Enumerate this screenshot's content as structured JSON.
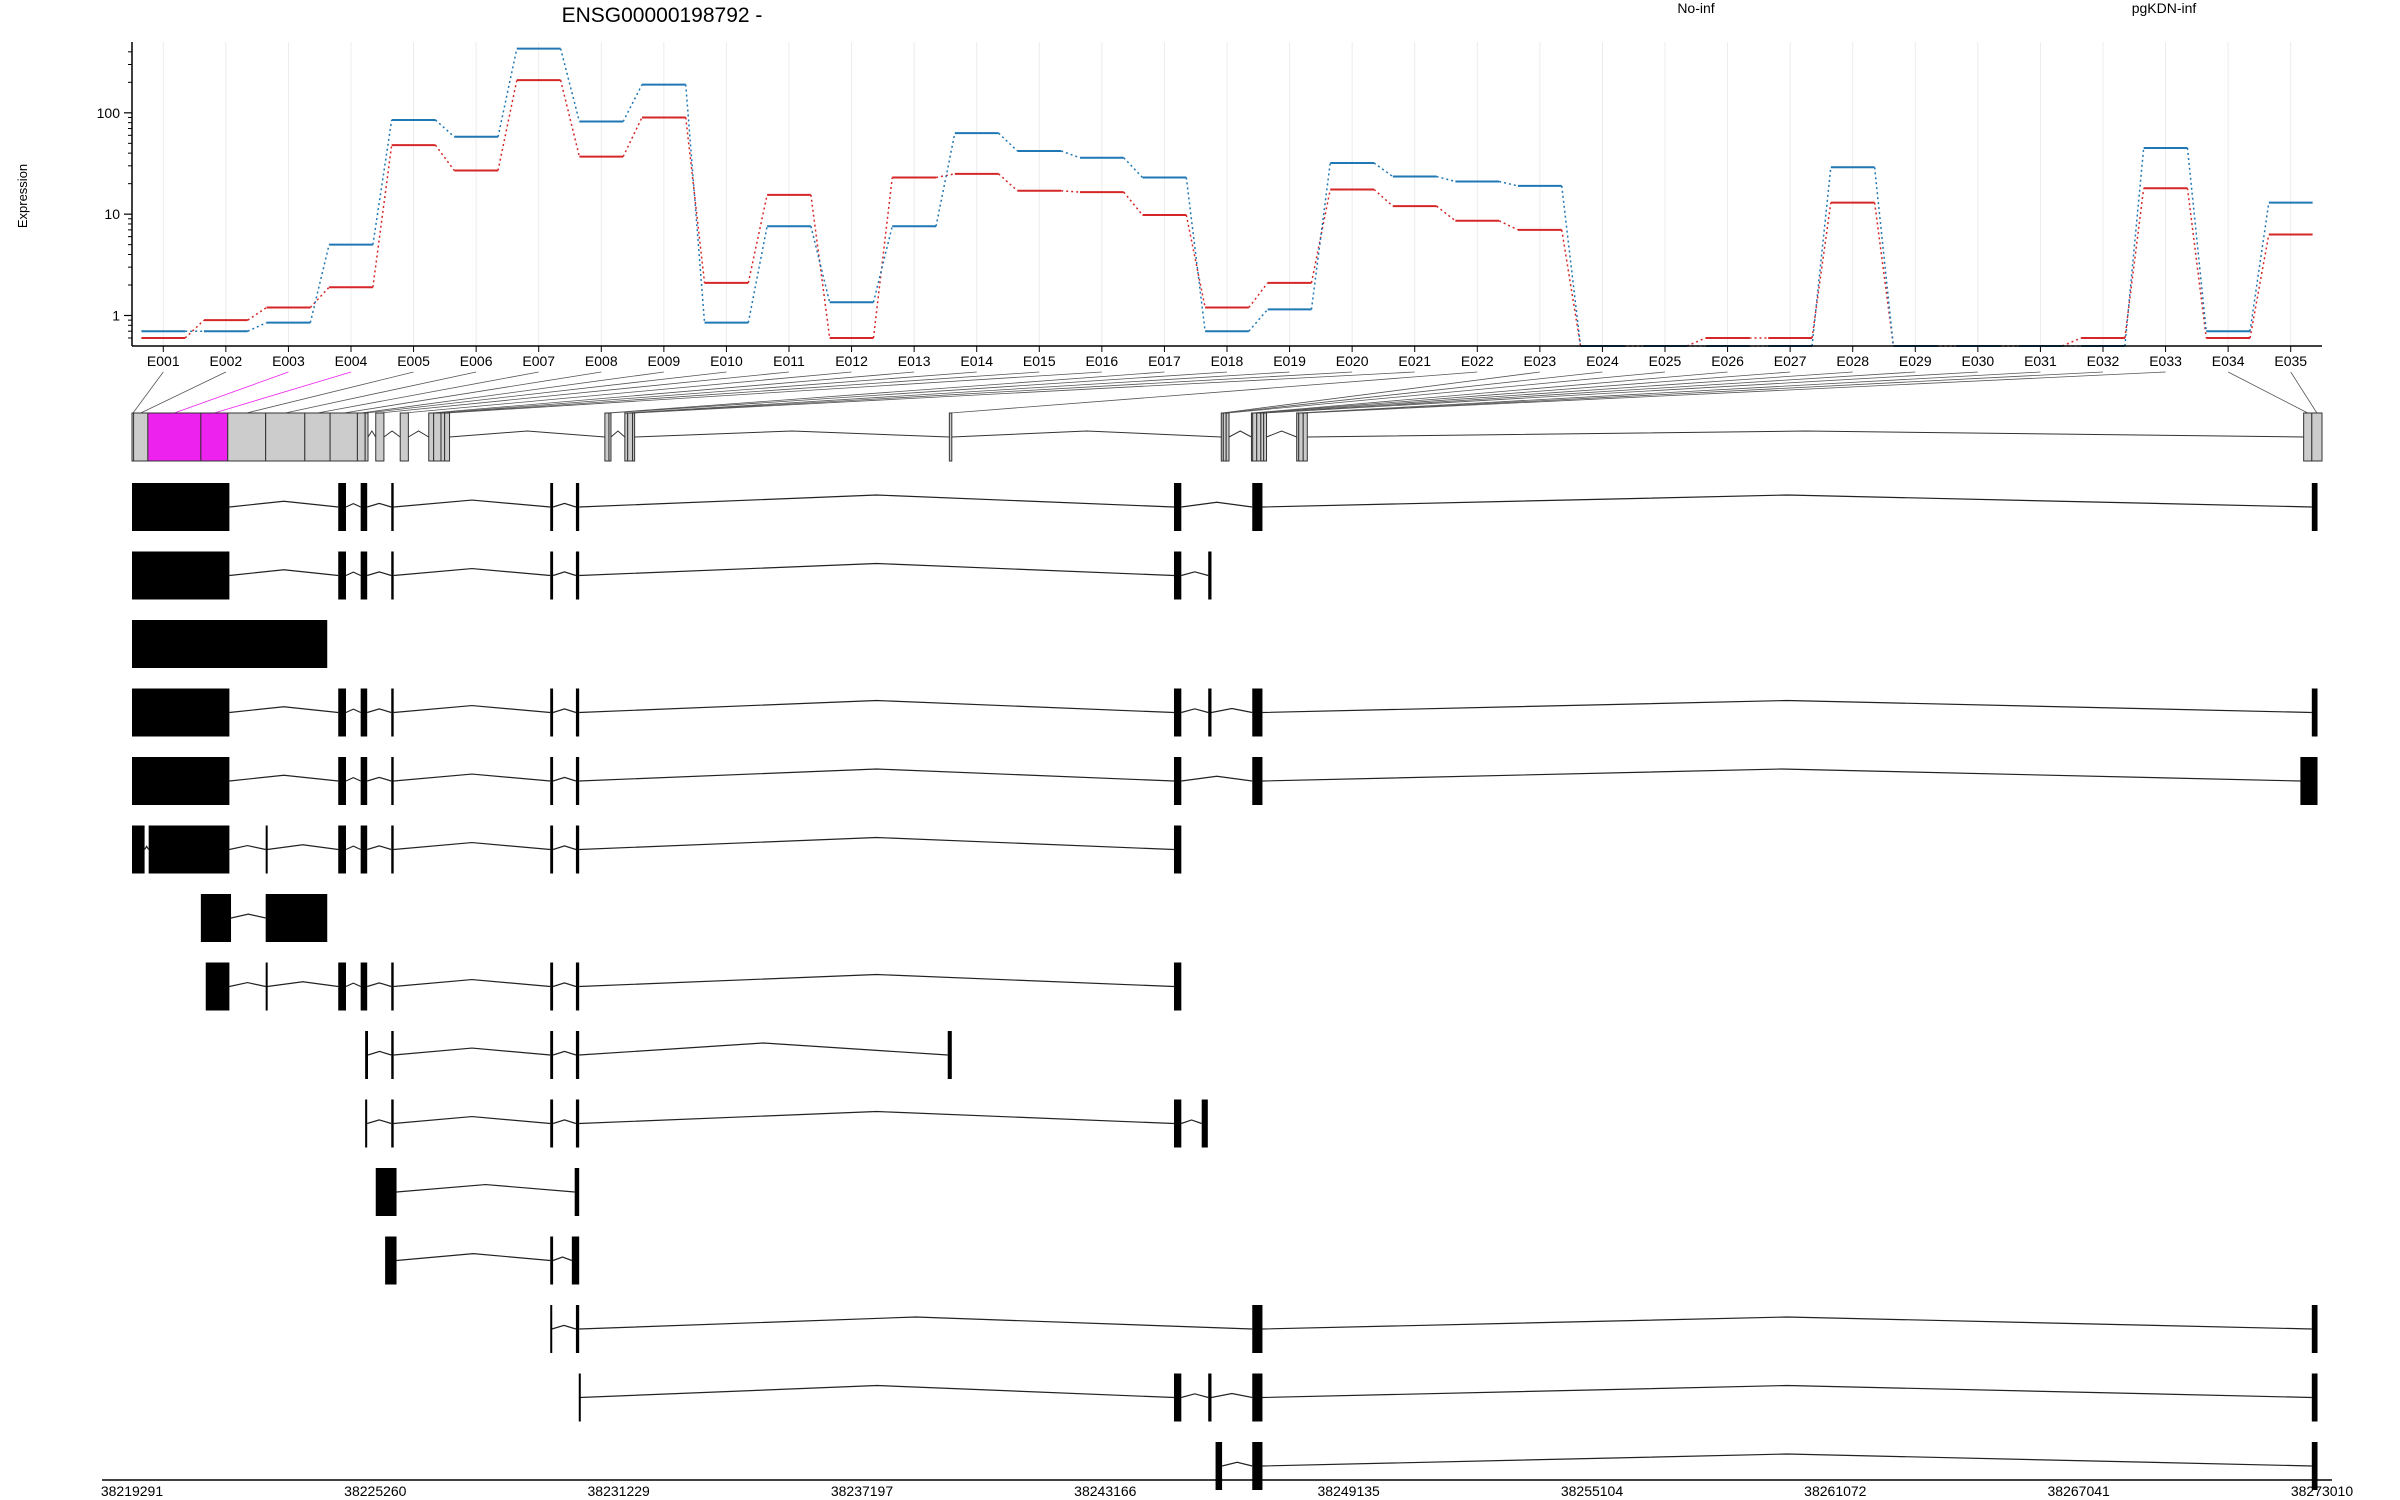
{
  "title": "ENSG00000198792 -",
  "ylabel": "Expression",
  "legend": [
    {
      "name": "No-inf",
      "color": "#d62728"
    },
    {
      "name": "pgKDN-inf",
      "color": "#1f77b4"
    }
  ],
  "chart_data": {
    "type": "line",
    "yscale": "log",
    "ylim": [
      0.5,
      500
    ],
    "yticks": [
      {
        "value": 1,
        "label": "1"
      },
      {
        "value": 10,
        "label": "10"
      },
      {
        "value": 100,
        "label": "100"
      }
    ],
    "categories": [
      "E001",
      "E002",
      "E003",
      "E004",
      "E005",
      "E006",
      "E007",
      "E008",
      "E009",
      "E010",
      "E011",
      "E012",
      "E013",
      "E014",
      "E015",
      "E016",
      "E017",
      "E018",
      "E019",
      "E020",
      "E021",
      "E022",
      "E023",
      "E024",
      "E025",
      "E026",
      "E027",
      "E028",
      "E029",
      "E030",
      "E031",
      "E032",
      "E033",
      "E034",
      "E035"
    ],
    "series": [
      {
        "name": "No-inf",
        "color": "#d62728",
        "values": [
          0.6,
          0.9,
          1.2,
          1.9,
          48,
          27,
          210,
          37,
          90,
          2.1,
          15.5,
          0.6,
          23,
          25,
          17,
          16.5,
          9.8,
          1.2,
          2.1,
          17.5,
          12,
          8.6,
          7,
          0.5,
          0.5,
          0.6,
          0.6,
          13,
          0.5,
          0.5,
          0.5,
          0.6,
          18,
          0.6,
          6.3
        ]
      },
      {
        "name": "pgKDN-inf",
        "color": "#1f77b4",
        "values": [
          0.7,
          0.7,
          0.85,
          5,
          85,
          58,
          430,
          82,
          190,
          0.85,
          7.6,
          1.35,
          7.6,
          63,
          42,
          36,
          23,
          0.7,
          1.15,
          32,
          23.5,
          21,
          19,
          0.5,
          0.5,
          0.5,
          0.5,
          29,
          0.5,
          0.5,
          0.5,
          0.5,
          45,
          0.7,
          13
        ]
      }
    ],
    "genomic_axis": {
      "start": 38219291,
      "end": 38273010,
      "ticks": [
        "38219291",
        "38225260",
        "38231229",
        "38237197",
        "38243166",
        "38249135",
        "38255104",
        "38261072",
        "38267041",
        "38273010"
      ]
    },
    "exon_bins": [
      {
        "id": "E001",
        "start": 38219291,
        "end": 38219330
      },
      {
        "id": "E002",
        "start": 38219330,
        "end": 38219680
      },
      {
        "id": "E003",
        "start": 38219680,
        "end": 38220980
      },
      {
        "id": "E004",
        "start": 38220980,
        "end": 38221640
      },
      {
        "id": "E005",
        "start": 38221640,
        "end": 38222570
      },
      {
        "id": "E006",
        "start": 38222570,
        "end": 38223530
      },
      {
        "id": "E007",
        "start": 38223530,
        "end": 38224150
      },
      {
        "id": "E008",
        "start": 38224150,
        "end": 38224820
      },
      {
        "id": "E009",
        "start": 38224820,
        "end": 38225010
      },
      {
        "id": "E010",
        "start": 38225010,
        "end": 38225080
      },
      {
        "id": "E011",
        "start": 38225270,
        "end": 38225470
      },
      {
        "id": "E012",
        "start": 38225870,
        "end": 38226070
      },
      {
        "id": "E013",
        "start": 38226570,
        "end": 38226690
      },
      {
        "id": "E014",
        "start": 38226690,
        "end": 38226870
      },
      {
        "id": "E015",
        "start": 38226870,
        "end": 38226960
      },
      {
        "id": "E016",
        "start": 38226960,
        "end": 38227080
      },
      {
        "id": "E017",
        "start": 38230890,
        "end": 38230990
      },
      {
        "id": "E018",
        "start": 38230990,
        "end": 38231040
      },
      {
        "id": "E019",
        "start": 38231380,
        "end": 38231450
      },
      {
        "id": "E020",
        "start": 38231450,
        "end": 38231570
      },
      {
        "id": "E021",
        "start": 38231570,
        "end": 38231620
      },
      {
        "id": "E022",
        "start": 38239340,
        "end": 38239400
      },
      {
        "id": "E023",
        "start": 38246010,
        "end": 38246060
      },
      {
        "id": "E024",
        "start": 38246060,
        "end": 38246130
      },
      {
        "id": "E025",
        "start": 38246130,
        "end": 38246200
      },
      {
        "id": "E026",
        "start": 38246750,
        "end": 38246780
      },
      {
        "id": "E027",
        "start": 38246780,
        "end": 38246880
      },
      {
        "id": "E028",
        "start": 38246880,
        "end": 38246980
      },
      {
        "id": "E029",
        "start": 38246980,
        "end": 38247050
      },
      {
        "id": "E030",
        "start": 38247050,
        "end": 38247120
      },
      {
        "id": "E031",
        "start": 38247860,
        "end": 38247910
      },
      {
        "id": "E032",
        "start": 38247910,
        "end": 38248020
      },
      {
        "id": "E033",
        "start": 38248020,
        "end": 38248120
      },
      {
        "id": "E034",
        "start": 38272560,
        "end": 38272760
      },
      {
        "id": "E035",
        "start": 38272760,
        "end": 38273010
      }
    ],
    "highlighted_bins": [
      "E003",
      "E004"
    ],
    "highlight_color": "#ee22ee",
    "transcripts": [
      {
        "exons": [
          [
            38219291,
            38221680
          ],
          [
            38224350,
            38224540
          ],
          [
            38224900,
            38225060
          ],
          [
            38225650,
            38225710
          ],
          [
            38229550,
            38229620
          ],
          [
            38230180,
            38230260
          ],
          [
            38244850,
            38245030
          ],
          [
            38246770,
            38247020
          ],
          [
            38272760,
            38272900
          ]
        ]
      },
      {
        "exons": [
          [
            38219291,
            38221680
          ],
          [
            38224350,
            38224540
          ],
          [
            38224900,
            38225060
          ],
          [
            38225650,
            38225710
          ],
          [
            38229550,
            38229620
          ],
          [
            38230180,
            38230260
          ],
          [
            38244850,
            38245030
          ],
          [
            38245690,
            38245770
          ]
        ]
      },
      {
        "exons": [
          [
            38219291,
            38224080
          ]
        ]
      },
      {
        "exons": [
          [
            38219291,
            38221680
          ],
          [
            38224350,
            38224540
          ],
          [
            38224900,
            38225060
          ],
          [
            38225650,
            38225710
          ],
          [
            38229550,
            38229620
          ],
          [
            38230180,
            38230260
          ],
          [
            38244850,
            38245030
          ],
          [
            38245690,
            38245770
          ],
          [
            38246770,
            38247020
          ],
          [
            38272760,
            38272900
          ]
        ]
      },
      {
        "exons": [
          [
            38219291,
            38221680
          ],
          [
            38224350,
            38224540
          ],
          [
            38224900,
            38225060
          ],
          [
            38225650,
            38225710
          ],
          [
            38229550,
            38229620
          ],
          [
            38230180,
            38230260
          ],
          [
            38244850,
            38245030
          ],
          [
            38246770,
            38247020
          ],
          [
            38272480,
            38272900
          ]
        ]
      },
      {
        "exons": [
          [
            38219291,
            38219600
          ],
          [
            38219700,
            38221680
          ],
          [
            38222570,
            38222610
          ],
          [
            38224350,
            38224540
          ],
          [
            38224900,
            38225060
          ],
          [
            38225650,
            38225710
          ],
          [
            38229550,
            38229620
          ],
          [
            38230180,
            38230260
          ],
          [
            38244850,
            38245030
          ]
        ]
      },
      {
        "exons": [
          [
            38220980,
            38221720
          ],
          [
            38222570,
            38224080
          ]
        ]
      },
      {
        "exons": [
          [
            38221100,
            38221680
          ],
          [
            38222570,
            38222610
          ],
          [
            38224350,
            38224540
          ],
          [
            38224900,
            38225060
          ],
          [
            38225650,
            38225710
          ],
          [
            38229550,
            38229620
          ],
          [
            38230180,
            38230260
          ],
          [
            38244850,
            38245030
          ]
        ]
      },
      {
        "exons": [
          [
            38225010,
            38225080
          ],
          [
            38225650,
            38225710
          ],
          [
            38229550,
            38229620
          ],
          [
            38230180,
            38230260
          ],
          [
            38239300,
            38239400
          ]
        ]
      },
      {
        "exons": [
          [
            38225010,
            38225060
          ],
          [
            38225650,
            38225710
          ],
          [
            38229550,
            38229620
          ],
          [
            38230180,
            38230260
          ],
          [
            38244850,
            38245030
          ],
          [
            38245530,
            38245680
          ]
        ]
      },
      {
        "exons": [
          [
            38225270,
            38225780
          ],
          [
            38230150,
            38230260
          ]
        ]
      },
      {
        "exons": [
          [
            38225500,
            38225780
          ],
          [
            38229550,
            38229620
          ],
          [
            38230080,
            38230260
          ]
        ]
      },
      {
        "exons": [
          [
            38229550,
            38229590
          ],
          [
            38230180,
            38230260
          ],
          [
            38246770,
            38247020
          ],
          [
            38272760,
            38272900
          ]
        ]
      },
      {
        "exons": [
          [
            38230250,
            38230280
          ],
          [
            38244850,
            38245030
          ],
          [
            38245690,
            38245770
          ],
          [
            38246770,
            38247020
          ],
          [
            38272760,
            38272900
          ]
        ]
      },
      {
        "exons": [
          [
            38245870,
            38246030
          ],
          [
            38246770,
            38247020
          ],
          [
            38272760,
            38272900
          ]
        ]
      }
    ]
  }
}
